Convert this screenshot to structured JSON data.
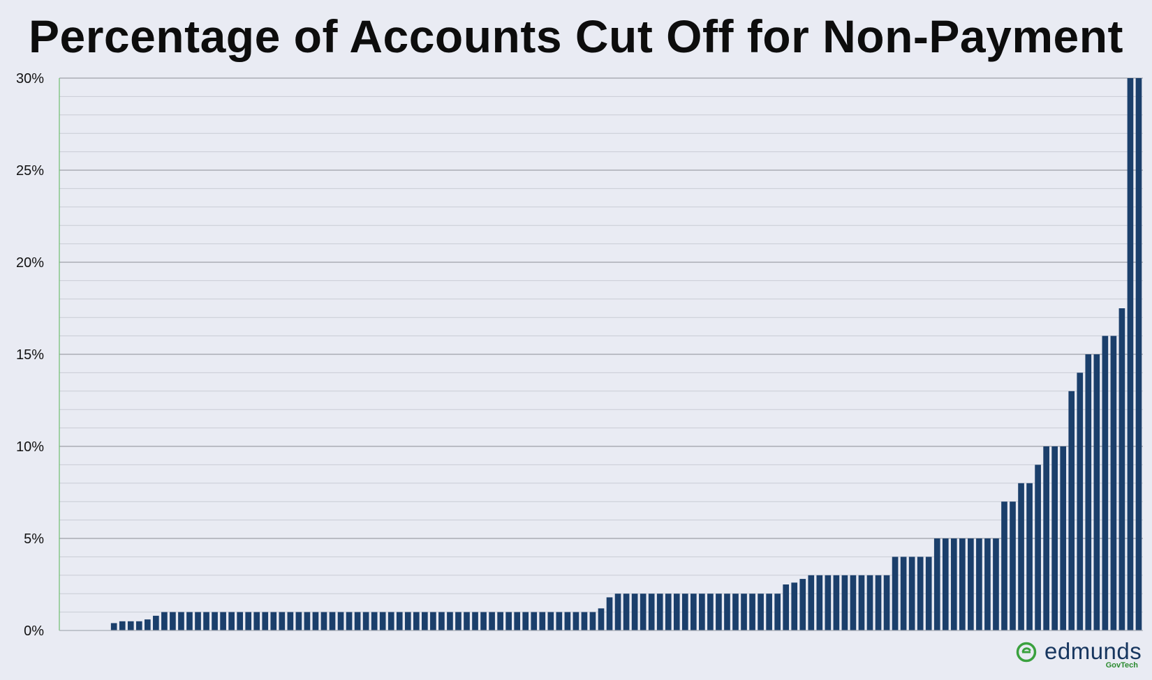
{
  "chart_data": {
    "type": "bar",
    "title": "Percentage of Accounts Cut Off for Non-Payment",
    "xlabel": "",
    "ylabel": "",
    "ylim": [
      0,
      30
    ],
    "y_ticks": [
      0,
      5,
      10,
      15,
      20,
      25,
      30
    ],
    "y_tick_labels": [
      "0%",
      "5%",
      "10%",
      "15%",
      "20%",
      "25%",
      "30%"
    ],
    "minor_gridline_step": 1,
    "grid": true,
    "bar_color": "#1b3f6b",
    "series": [
      {
        "values": [
          0,
          0,
          0,
          0,
          0,
          0,
          0.4,
          0.5,
          0.5,
          0.5,
          0.6,
          0.8,
          1,
          1,
          1,
          1,
          1,
          1,
          1,
          1,
          1,
          1,
          1,
          1,
          1,
          1,
          1,
          1,
          1,
          1,
          1,
          1,
          1,
          1,
          1,
          1,
          1,
          1,
          1,
          1,
          1,
          1,
          1,
          1,
          1,
          1,
          1,
          1,
          1,
          1,
          1,
          1,
          1,
          1,
          1,
          1,
          1,
          1,
          1,
          1,
          1,
          1,
          1,
          1,
          1.2,
          1.8,
          2,
          2,
          2,
          2,
          2,
          2,
          2,
          2,
          2,
          2,
          2,
          2,
          2,
          2,
          2,
          2,
          2,
          2,
          2,
          2,
          2.5,
          2.6,
          2.8,
          3,
          3,
          3,
          3,
          3,
          3,
          3,
          3,
          3,
          3,
          4,
          4,
          4,
          4,
          4,
          5,
          5,
          5,
          5,
          5,
          5,
          5,
          5,
          7,
          7,
          8,
          8,
          9,
          10,
          10,
          10,
          13,
          14,
          15,
          15,
          16,
          16,
          17.5,
          30,
          30
        ]
      }
    ]
  },
  "logo": {
    "name": "edmunds",
    "subtitle": "GovTech",
    "colors": {
      "word": "#17365f",
      "mark": "#3aa13e",
      "sub": "#2a8a2e"
    }
  },
  "colors": {
    "background": "#e9ebf3",
    "major_grid": "#8a8d96",
    "minor_grid": "#c9ccd5",
    "left_axis": "#6fbf6f"
  }
}
